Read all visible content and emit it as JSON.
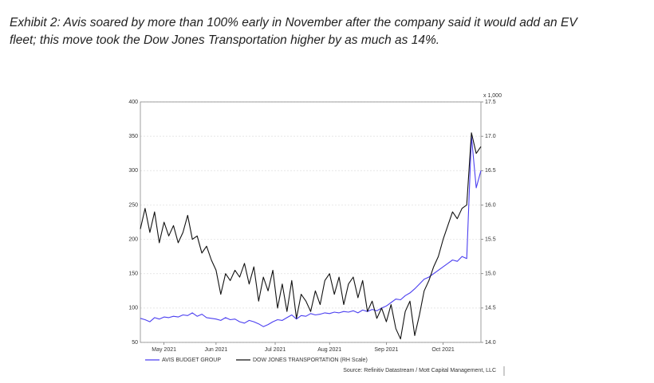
{
  "chart_data": {
    "type": "line",
    "caption": [
      "Exhibit 2: Avis soared by more than 100% early in November after the company said it would add an EV",
      "fleet; this move took the Dow Jones Transportation higher by as much as 14%."
    ],
    "xlim": [
      0,
      72
    ],
    "xticks": [
      {
        "value": 5,
        "label": "May 2021"
      },
      {
        "value": 16,
        "label": "Jun 2021"
      },
      {
        "value": 28.5,
        "label": "Jul 2021"
      },
      {
        "value": 40,
        "label": "Aug 2021"
      },
      {
        "value": 52,
        "label": "Sep 2021"
      },
      {
        "value": 64,
        "label": "Oct 2021"
      }
    ],
    "ylim": [
      50,
      400
    ],
    "yticks": [
      50,
      100,
      150,
      200,
      250,
      300,
      350,
      400
    ],
    "y2lim": [
      14.0,
      17.5
    ],
    "y2ticks": [
      {
        "value": 14.0,
        "label": "14.0"
      },
      {
        "value": 14.5,
        "label": "14.5"
      },
      {
        "value": 15.0,
        "label": "15.0"
      },
      {
        "value": 15.5,
        "label": "15.5"
      },
      {
        "value": 16.0,
        "label": "16.0"
      },
      {
        "value": 16.5,
        "label": "16.5"
      },
      {
        "value": 17.0,
        "label": "17.0"
      },
      {
        "value": 17.5,
        "label": "17.5"
      }
    ],
    "y2_unit_label": "x 1,000",
    "grid": true,
    "series": [
      {
        "name": "AVIS BUDGET GROUP",
        "color": "#4b3ff0",
        "axis": "y",
        "values": [
          85,
          83,
          80,
          86,
          84,
          87,
          86,
          88,
          87,
          90,
          89,
          93,
          88,
          91,
          86,
          85,
          84,
          82,
          86,
          83,
          84,
          80,
          78,
          82,
          80,
          77,
          73,
          76,
          80,
          83,
          82,
          86,
          90,
          84,
          89,
          88,
          92,
          90,
          91,
          93,
          92,
          94,
          93,
          95,
          94,
          96,
          93,
          97,
          95,
          98,
          96,
          100,
          103,
          108,
          113,
          112,
          118,
          122,
          128,
          135,
          142,
          145,
          150,
          155,
          160,
          165,
          170,
          168,
          175,
          172,
          350,
          275,
          300
        ]
      },
      {
        "name": "DOW JONES TRANSPORTATION (RH Scale)",
        "color": "#111111",
        "axis": "y2",
        "values": [
          15.65,
          15.95,
          15.6,
          15.9,
          15.45,
          15.75,
          15.55,
          15.7,
          15.45,
          15.6,
          15.85,
          15.5,
          15.55,
          15.3,
          15.4,
          15.2,
          15.05,
          14.7,
          15.0,
          14.9,
          15.05,
          14.95,
          15.15,
          14.85,
          15.1,
          14.6,
          14.95,
          14.75,
          15.05,
          14.5,
          14.85,
          14.45,
          14.9,
          14.35,
          14.7,
          14.6,
          14.45,
          14.75,
          14.55,
          14.9,
          15.0,
          14.7,
          14.95,
          14.55,
          14.85,
          14.95,
          14.65,
          14.9,
          14.45,
          14.6,
          14.35,
          14.5,
          14.3,
          14.55,
          14.2,
          14.05,
          14.45,
          14.6,
          14.1,
          14.4,
          14.75,
          14.9,
          15.1,
          15.25,
          15.5,
          15.7,
          15.9,
          15.8,
          15.95,
          16.0,
          17.05,
          16.75,
          16.85
        ]
      }
    ],
    "source": "Source: Refinitiv Datastream / Mott Capital Management, LLC"
  }
}
